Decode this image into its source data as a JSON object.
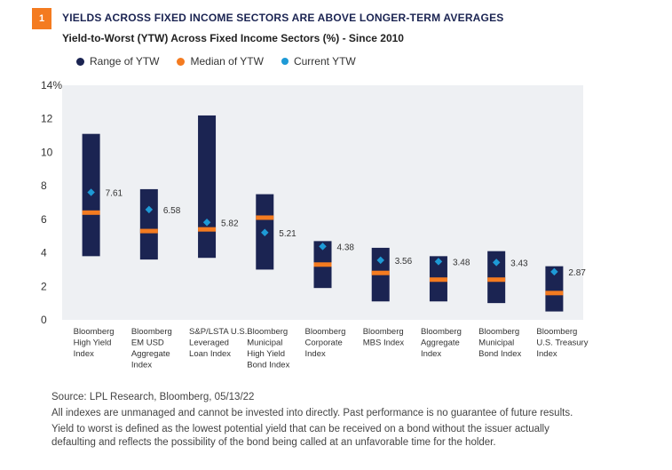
{
  "header": {
    "badge": "1",
    "title": "YIELDS ACROSS FIXED INCOME SECTORS ARE ABOVE LONGER-TERM AVERAGES",
    "subtitle": "Yield-to-Worst (YTW) Across Fixed Income Sectors (%) - Since 2010"
  },
  "legend": {
    "range": "Range of YTW",
    "median": "Median of YTW",
    "current": "Current YTW"
  },
  "colors": {
    "range": "#1b2452",
    "median": "#f47b20",
    "current": "#1e9ad6",
    "plot_bg": "#eef0f3",
    "badge": "#f47b20"
  },
  "chart_data": {
    "type": "range",
    "ylim": [
      0,
      14
    ],
    "y_ticks": [
      "0",
      "2",
      "4",
      "6",
      "8",
      "10",
      "12",
      "14%"
    ],
    "grid": false,
    "categories": [
      [
        "Bloomberg",
        "High Yield",
        "Index"
      ],
      [
        "Bloomberg",
        "EM USD",
        "Aggregate",
        "Index"
      ],
      [
        "S&P/LSTA U.S.",
        "Leveraged",
        "Loan Index"
      ],
      [
        "Bloomberg",
        "Municipal",
        "High Yield",
        "Bond Index"
      ],
      [
        "Bloomberg",
        "Corporate",
        "Index"
      ],
      [
        "Bloomberg",
        "MBS Index"
      ],
      [
        "Bloomberg",
        "Aggregate",
        "Index"
      ],
      [
        "Bloomberg",
        "Municipal",
        "Bond Index"
      ],
      [
        "Bloomberg",
        "U.S. Treasury",
        "Index"
      ]
    ],
    "series": [
      {
        "name": "Range of YTW",
        "low": [
          3.8,
          3.6,
          3.7,
          3.0,
          1.9,
          1.1,
          1.1,
          1.0,
          0.5
        ],
        "high": [
          11.1,
          7.8,
          12.2,
          7.5,
          4.7,
          4.3,
          3.8,
          4.1,
          3.2
        ]
      },
      {
        "name": "Median of YTW",
        "values": [
          6.4,
          5.3,
          5.4,
          6.1,
          3.3,
          2.8,
          2.4,
          2.4,
          1.6
        ]
      },
      {
        "name": "Current YTW",
        "values": [
          7.61,
          6.58,
          5.82,
          5.21,
          4.38,
          3.56,
          3.48,
          3.43,
          2.87
        ]
      }
    ],
    "value_labels": [
      "7.61",
      "6.58",
      "5.82",
      "5.21",
      "4.38",
      "3.56",
      "3.48",
      "3.43",
      "2.87"
    ]
  },
  "footer": {
    "source": "Source: LPL Research, Bloomberg,  05/13/22",
    "disclaimer": "All indexes are unmanaged and cannot be invested into directly. Past performance is no guarantee of future results.",
    "definition_1": "Yield to worst is defined as the lowest potential yield that can be received on a bond without the issuer actually",
    "definition_2": "defaulting and reflects the possibility of the bond being called at an unfavorable time for the holder."
  }
}
